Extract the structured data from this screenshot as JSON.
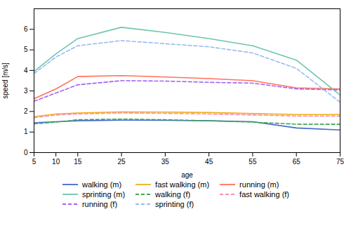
{
  "chart_data": {
    "type": "line",
    "xlabel": "age",
    "ylabel": "speed [m/s]",
    "x": [
      5,
      10,
      15,
      25,
      35,
      45,
      55,
      65,
      75
    ],
    "series": [
      {
        "name": "walking (m)",
        "line_style": "solid",
        "values": [
          1.45,
          1.5,
          1.55,
          1.58,
          1.57,
          1.55,
          1.5,
          1.2,
          1.1
        ]
      },
      {
        "name": "fast walking (m)",
        "line_style": "solid",
        "values": [
          1.75,
          1.88,
          1.93,
          1.98,
          1.97,
          1.95,
          1.9,
          1.85,
          1.85
        ]
      },
      {
        "name": "running (m)",
        "line_style": "solid",
        "values": [
          2.62,
          3.1,
          3.7,
          3.75,
          3.68,
          3.6,
          3.5,
          3.15,
          3.1
        ]
      },
      {
        "name": "sprinting (m)",
        "line_style": "solid",
        "values": [
          3.95,
          4.8,
          5.55,
          6.1,
          5.85,
          5.55,
          5.2,
          4.5,
          2.8
        ]
      },
      {
        "name": "walking (f)",
        "line_style": "dashed",
        "values": [
          1.4,
          1.48,
          1.6,
          1.63,
          1.6,
          1.55,
          1.48,
          1.38,
          1.38
        ]
      },
      {
        "name": "fast walking (f)",
        "line_style": "dashed",
        "values": [
          1.7,
          1.83,
          1.88,
          1.93,
          1.91,
          1.88,
          1.83,
          1.78,
          1.78
        ]
      },
      {
        "name": "running (f)",
        "line_style": "dashed",
        "values": [
          2.5,
          2.9,
          3.3,
          3.5,
          3.48,
          3.42,
          3.38,
          3.1,
          3.05
        ]
      },
      {
        "name": "sprinting (f)",
        "line_style": "dashed",
        "values": [
          3.85,
          4.65,
          5.2,
          5.45,
          5.3,
          5.15,
          4.85,
          4.1,
          2.45
        ]
      }
    ],
    "xlim": [
      5,
      75
    ],
    "xticks": [
      5,
      10,
      15,
      25,
      35,
      45,
      55,
      65,
      75
    ],
    "ylim": [
      0,
      7
    ],
    "yticks": [
      0,
      1,
      2,
      3,
      4,
      5,
      6
    ],
    "grid": false,
    "legend": "bottom"
  }
}
